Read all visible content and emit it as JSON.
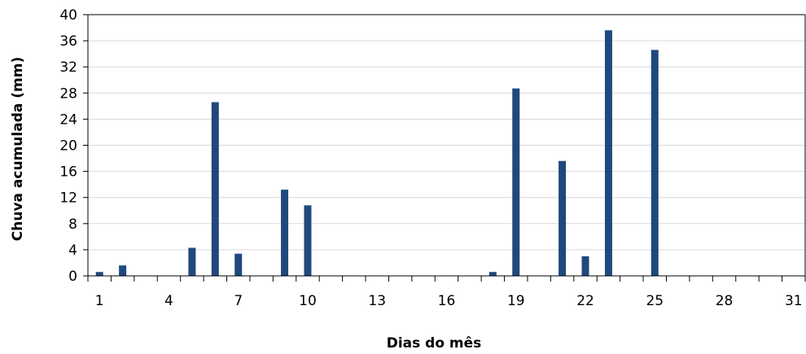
{
  "chart_data": {
    "type": "bar",
    "title": "",
    "xlabel": "Dias do mês",
    "ylabel": "Chuva acumulada (mm)",
    "x": [
      1,
      2,
      3,
      4,
      5,
      6,
      7,
      8,
      9,
      10,
      11,
      12,
      13,
      14,
      15,
      16,
      17,
      18,
      19,
      20,
      21,
      22,
      23,
      24,
      25,
      26,
      27,
      28,
      29,
      30,
      31
    ],
    "values": [
      0.6,
      1.6,
      0,
      0,
      4.3,
      26.6,
      3.4,
      0,
      13.2,
      10.8,
      0,
      0,
      0,
      0,
      0,
      0,
      0,
      0.6,
      28.7,
      0,
      17.6,
      3.0,
      37.6,
      0,
      34.6,
      0,
      0,
      0,
      0,
      0,
      0
    ],
    "xticks": [
      "1",
      "4",
      "7",
      "10",
      "13",
      "16",
      "19",
      "22",
      "25",
      "28",
      "31"
    ],
    "yticks": [
      "0",
      "4",
      "8",
      "12",
      "16",
      "20",
      "24",
      "28",
      "32",
      "36",
      "40"
    ],
    "ylim": [
      0,
      40
    ],
    "grid": true,
    "legend": "none",
    "bar_color": "#1F497D",
    "grid_color": "#D9D9D9",
    "axis_color": "#000000"
  }
}
